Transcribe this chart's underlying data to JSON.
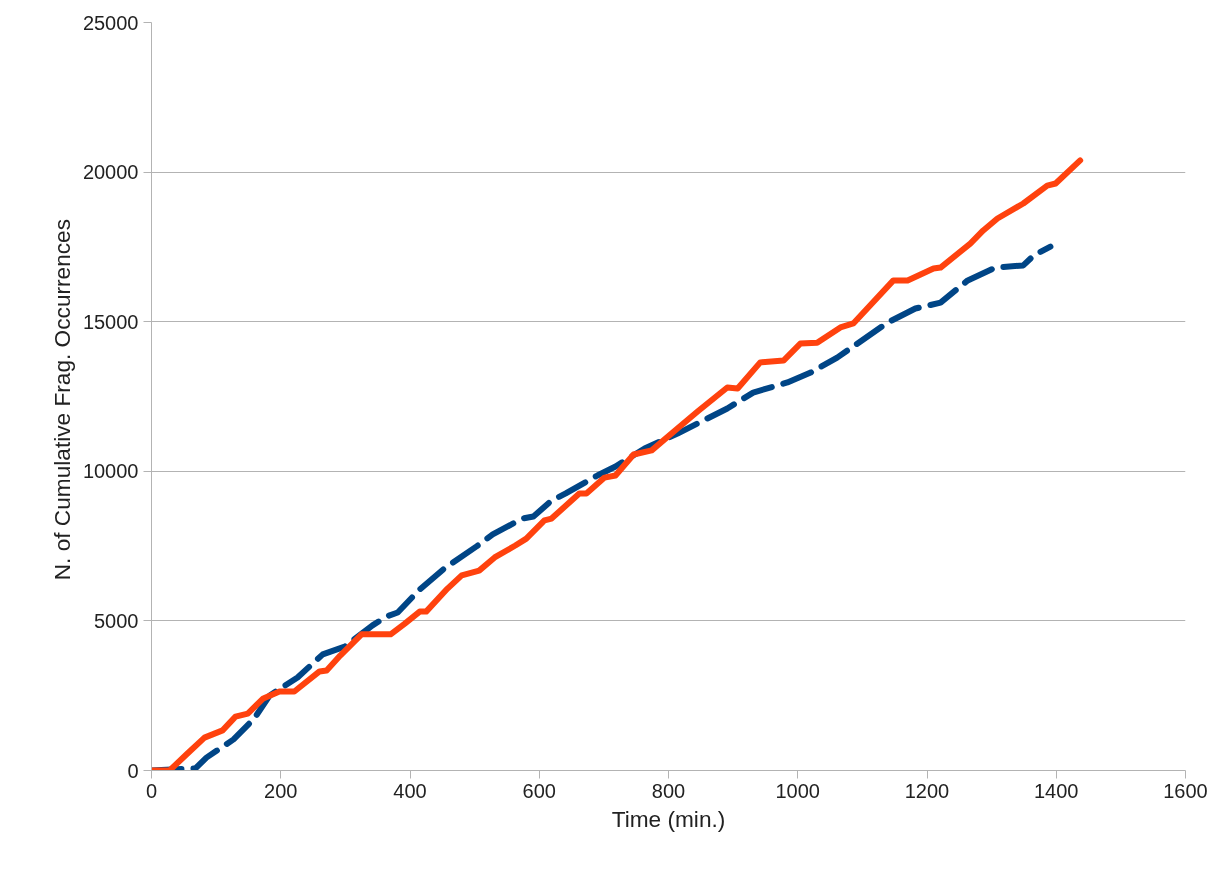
{
  "chart_data": {
    "type": "line",
    "xlabel": "Time (min.)",
    "ylabel": "N. of Cumulative  Frag. Occurrences",
    "xlim": [
      0,
      1600
    ],
    "xticks": [
      0,
      200,
      400,
      600,
      800,
      1000,
      1200,
      1400,
      1600
    ],
    "ylim": [
      0,
      25000
    ],
    "yticks": [
      0,
      5000,
      10000,
      15000,
      20000,
      25000
    ],
    "grid": "y",
    "series": [
      {
        "color": "#004586",
        "line_style": "dashed",
        "x": [
          0,
          68,
          85,
          127,
          159,
          183,
          226,
          265,
          299,
          342,
          364,
          381,
          415,
          453,
          503,
          528,
          574,
          591,
          619,
          641,
          690,
          718,
          740,
          763,
          814,
          845,
          891,
          931,
          984,
          1020,
          1061,
          1139,
          1182,
          1221,
          1263,
          1306,
          1349,
          1365,
          1391
        ],
        "values": [
          0,
          70,
          430,
          1040,
          1740,
          2510,
          3110,
          3880,
          4140,
          4850,
          5150,
          5280,
          6050,
          6750,
          7490,
          7890,
          8420,
          8490,
          9020,
          9260,
          9860,
          10160,
          10460,
          10760,
          11260,
          11600,
          12100,
          12630,
          12970,
          13300,
          13800,
          14970,
          15440,
          15640,
          16380,
          16810,
          16880,
          17210,
          17510
        ]
      },
      {
        "color": "#ff420e",
        "line_style": "solid",
        "x": [
          0,
          28,
          54,
          82,
          110,
          130,
          149,
          173,
          198,
          221,
          260,
          271,
          292,
          325,
          370,
          392,
          415,
          425,
          458,
          480,
          507,
          531,
          563,
          580,
          608,
          619,
          662,
          673,
          701,
          718,
          746,
          774,
          812,
          845,
          891,
          907,
          942,
          978,
          1004,
          1030,
          1066,
          1086,
          1148,
          1170,
          1210,
          1221,
          1267,
          1287,
          1309,
          1349,
          1386,
          1399,
          1437
        ],
        "values": [
          0,
          0,
          535,
          1100,
          1340,
          1800,
          1900,
          2410,
          2640,
          2640,
          3310,
          3340,
          3840,
          4550,
          4550,
          4910,
          5310,
          5310,
          6080,
          6520,
          6680,
          7120,
          7520,
          7750,
          8360,
          8420,
          9260,
          9260,
          9790,
          9860,
          10560,
          10700,
          11400,
          12000,
          12800,
          12770,
          13640,
          13700,
          14270,
          14300,
          14810,
          14940,
          16380,
          16380,
          16780,
          16810,
          17610,
          18050,
          18450,
          18950,
          19550,
          19620,
          20390
        ]
      }
    ]
  }
}
